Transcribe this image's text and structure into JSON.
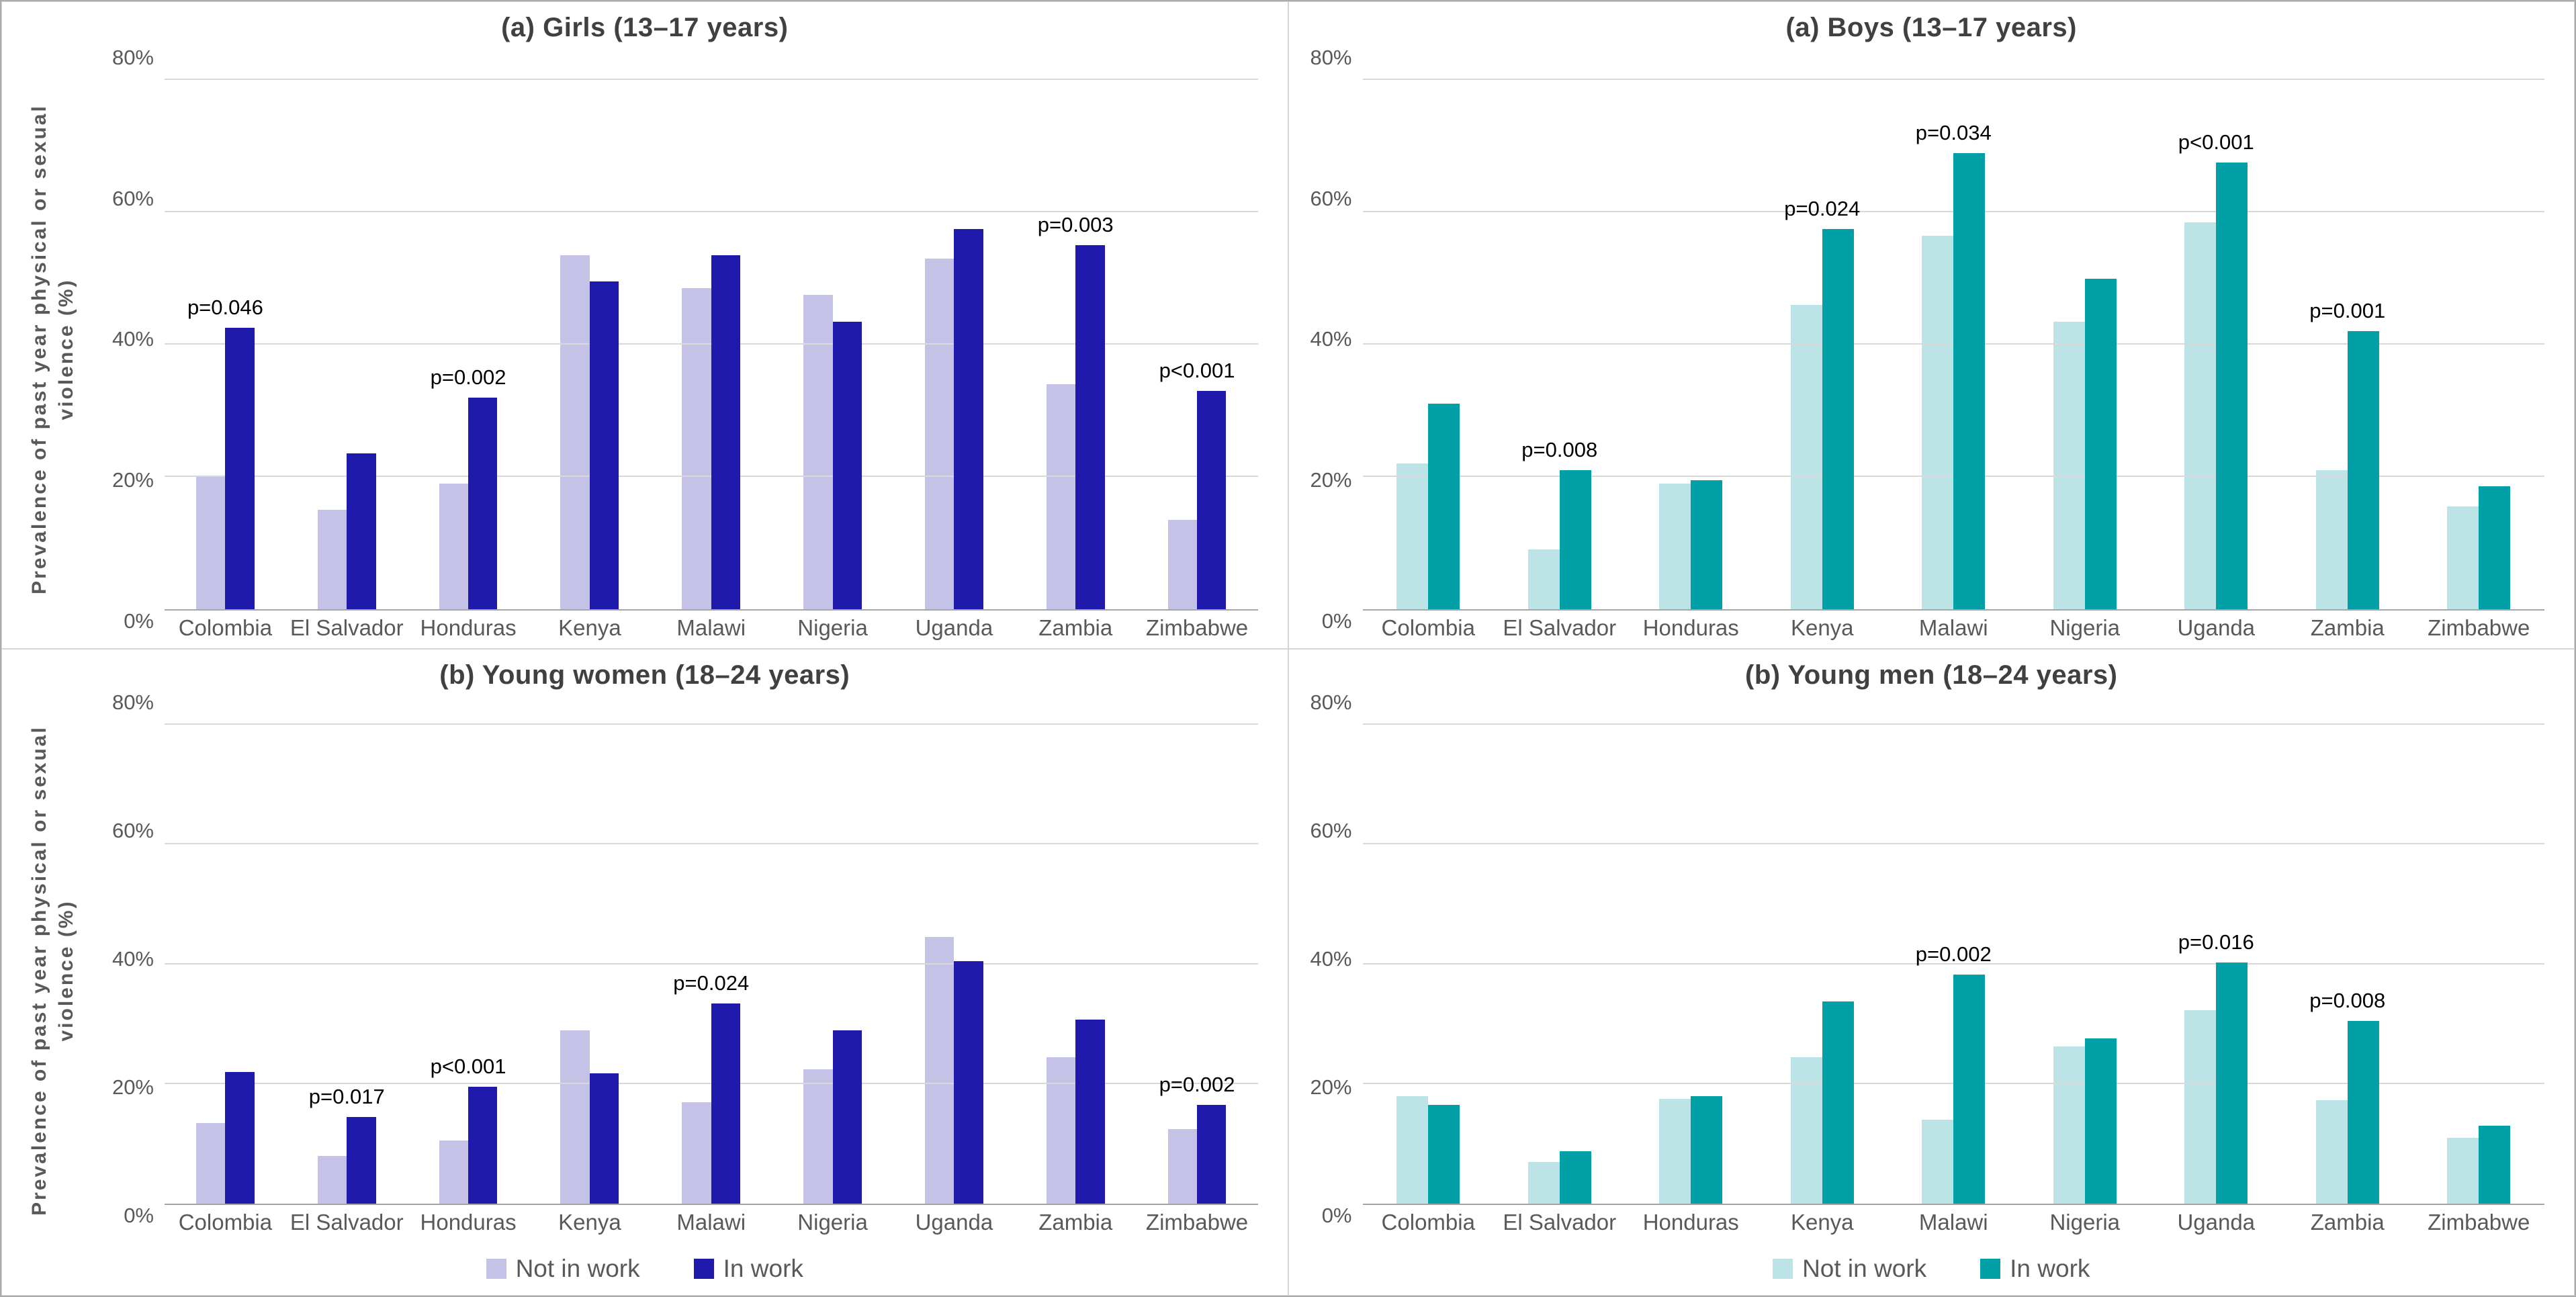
{
  "figure": {
    "yticks": {
      "values": [
        0,
        20,
        40,
        60,
        80
      ],
      "labels": [
        "0%",
        "20%",
        "40%",
        "60%",
        "80%"
      ]
    },
    "plot_max": 84,
    "ylabel_line1": "Prevalence of past year physical or sexual",
    "ylabel_line2": "violence (%)",
    "legend": {
      "not_in_work": "Not in work",
      "in_work": "In work"
    }
  },
  "colors": {
    "lavender_light": "#c4c3e7",
    "blue_dark": "#1f1aab",
    "teal_light": "#bce4e6",
    "teal_dark": "#00a0a6",
    "gridline": "#d9d9d9",
    "axis_line": "#a6a6a6",
    "tick_text": "#595959",
    "title_text": "#404040",
    "p_text": "#000000"
  },
  "chart_data": [
    {
      "type": "bar",
      "position": "top-left",
      "title": "(a) Girls (13–17 years)",
      "ylabel": "Prevalence of past year physical or sexual violence (%)",
      "palette": "blue",
      "has_ylabel": true,
      "has_legend": false,
      "ylim": [
        0,
        80
      ],
      "categories": [
        "Colombia",
        "El Salvador",
        "Honduras",
        "Kenya",
        "Malawi",
        "Nigeria",
        "Uganda",
        "Zambia",
        "Zimbabwe"
      ],
      "series": [
        {
          "name": "Not in work",
          "values": [
            20,
            15,
            19,
            53.5,
            48.5,
            47.5,
            53,
            34,
            13.5
          ]
        },
        {
          "name": "In work",
          "values": [
            42.5,
            23.5,
            32,
            49.5,
            53.5,
            43.5,
            57.5,
            55,
            33
          ]
        }
      ],
      "p_labels": [
        "p=0.046",
        null,
        "p=0.002",
        null,
        null,
        null,
        null,
        "p=0.003",
        "p<0.001"
      ]
    },
    {
      "type": "bar",
      "position": "top-right",
      "title": "(a) Boys (13–17 years)",
      "ylabel": "",
      "palette": "teal",
      "has_ylabel": false,
      "has_legend": false,
      "ylim": [
        0,
        80
      ],
      "categories": [
        "Colombia",
        "El Salvador",
        "Honduras",
        "Kenya",
        "Malawi",
        "Nigeria",
        "Uganda",
        "Zambia",
        "Zimbabwe"
      ],
      "series": [
        {
          "name": "Not in work",
          "values": [
            22,
            9,
            19,
            46,
            56.5,
            43.5,
            58.5,
            21,
            15.5
          ]
        },
        {
          "name": "In work",
          "values": [
            31,
            21,
            19.5,
            57.5,
            69,
            50,
            67.5,
            42,
            18.5
          ]
        }
      ],
      "p_labels": [
        null,
        "p=0.008",
        null,
        "p=0.024",
        "p=0.034",
        null,
        "p<0.001",
        "p=0.001",
        null
      ]
    },
    {
      "type": "bar",
      "position": "bottom-left",
      "title": "(b) Young women (18–24 years)",
      "ylabel": "Prevalence of past year physical or sexual violence (%)",
      "palette": "blue",
      "has_ylabel": true,
      "has_legend": true,
      "ylim": [
        0,
        80
      ],
      "categories": [
        "Colombia",
        "El Salvador",
        "Honduras",
        "Kenya",
        "Malawi",
        "Nigeria",
        "Uganda",
        "Zambia",
        "Zimbabwe"
      ],
      "series": [
        {
          "name": "Not in work",
          "values": [
            13.5,
            8,
            10.5,
            29,
            17,
            22.5,
            44.5,
            24.5,
            12.5
          ]
        },
        {
          "name": "In work",
          "values": [
            22,
            14.5,
            19.5,
            21.8,
            33.5,
            29,
            40.5,
            30.8,
            16.5
          ]
        }
      ],
      "p_labels": [
        null,
        "p=0.017",
        "p<0.001",
        null,
        "p=0.024",
        null,
        null,
        null,
        "p=0.002"
      ]
    },
    {
      "type": "bar",
      "position": "bottom-right",
      "title": "(b) Young men (18–24 years)",
      "ylabel": "",
      "palette": "teal",
      "has_ylabel": false,
      "has_legend": true,
      "ylim": [
        0,
        80
      ],
      "categories": [
        "Colombia",
        "El Salvador",
        "Honduras",
        "Kenya",
        "Malawi",
        "Nigeria",
        "Uganda",
        "Zambia",
        "Zimbabwe"
      ],
      "series": [
        {
          "name": "Not in work",
          "values": [
            18,
            7,
            17.5,
            24.5,
            14,
            26.3,
            32.3,
            17.3,
            11
          ]
        },
        {
          "name": "In work",
          "values": [
            16.5,
            8.8,
            18,
            33.8,
            38.3,
            27.6,
            40.3,
            30.5,
            13
          ]
        }
      ],
      "p_labels": [
        null,
        null,
        null,
        null,
        "p=0.002",
        null,
        "p=0.016",
        "p=0.008",
        null
      ]
    }
  ]
}
